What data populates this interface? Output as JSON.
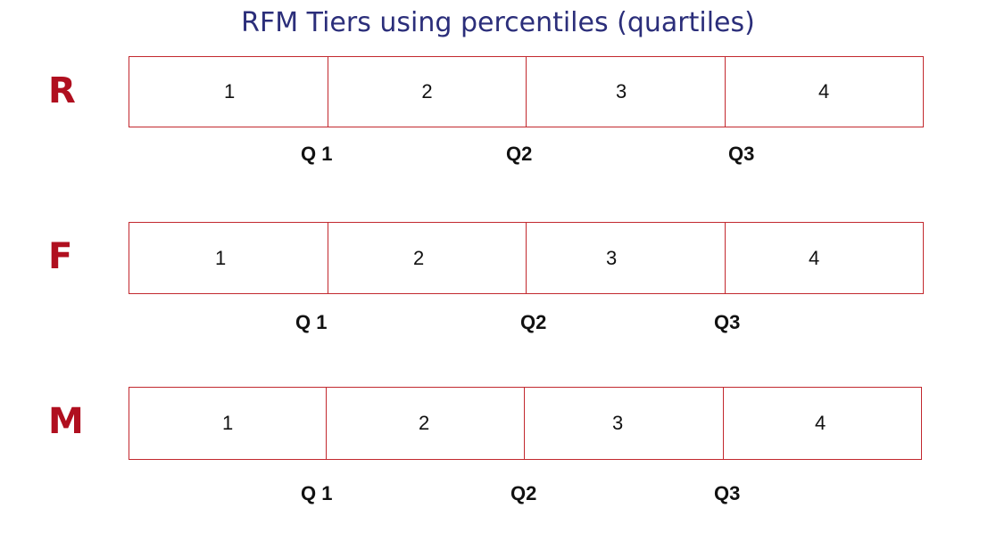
{
  "title": "RFM Tiers using percentiles (quartiles)",
  "colors": {
    "title": "#2b2e7a",
    "row_label": "#b00f1f",
    "bar_border": "#c2282e"
  },
  "rows": [
    {
      "label": "R",
      "cells": [
        "1",
        "2",
        "3",
        "4"
      ],
      "quartiles": [
        "Q 1",
        "Q2",
        "Q3"
      ]
    },
    {
      "label": "F",
      "cells": [
        "1",
        "2",
        "3",
        "4"
      ],
      "quartiles": [
        "Q 1",
        "Q2",
        "Q3"
      ]
    },
    {
      "label": "M",
      "cells": [
        "1",
        "2",
        "3",
        "4"
      ],
      "quartiles": [
        "Q 1",
        "Q2",
        "Q3"
      ]
    }
  ]
}
